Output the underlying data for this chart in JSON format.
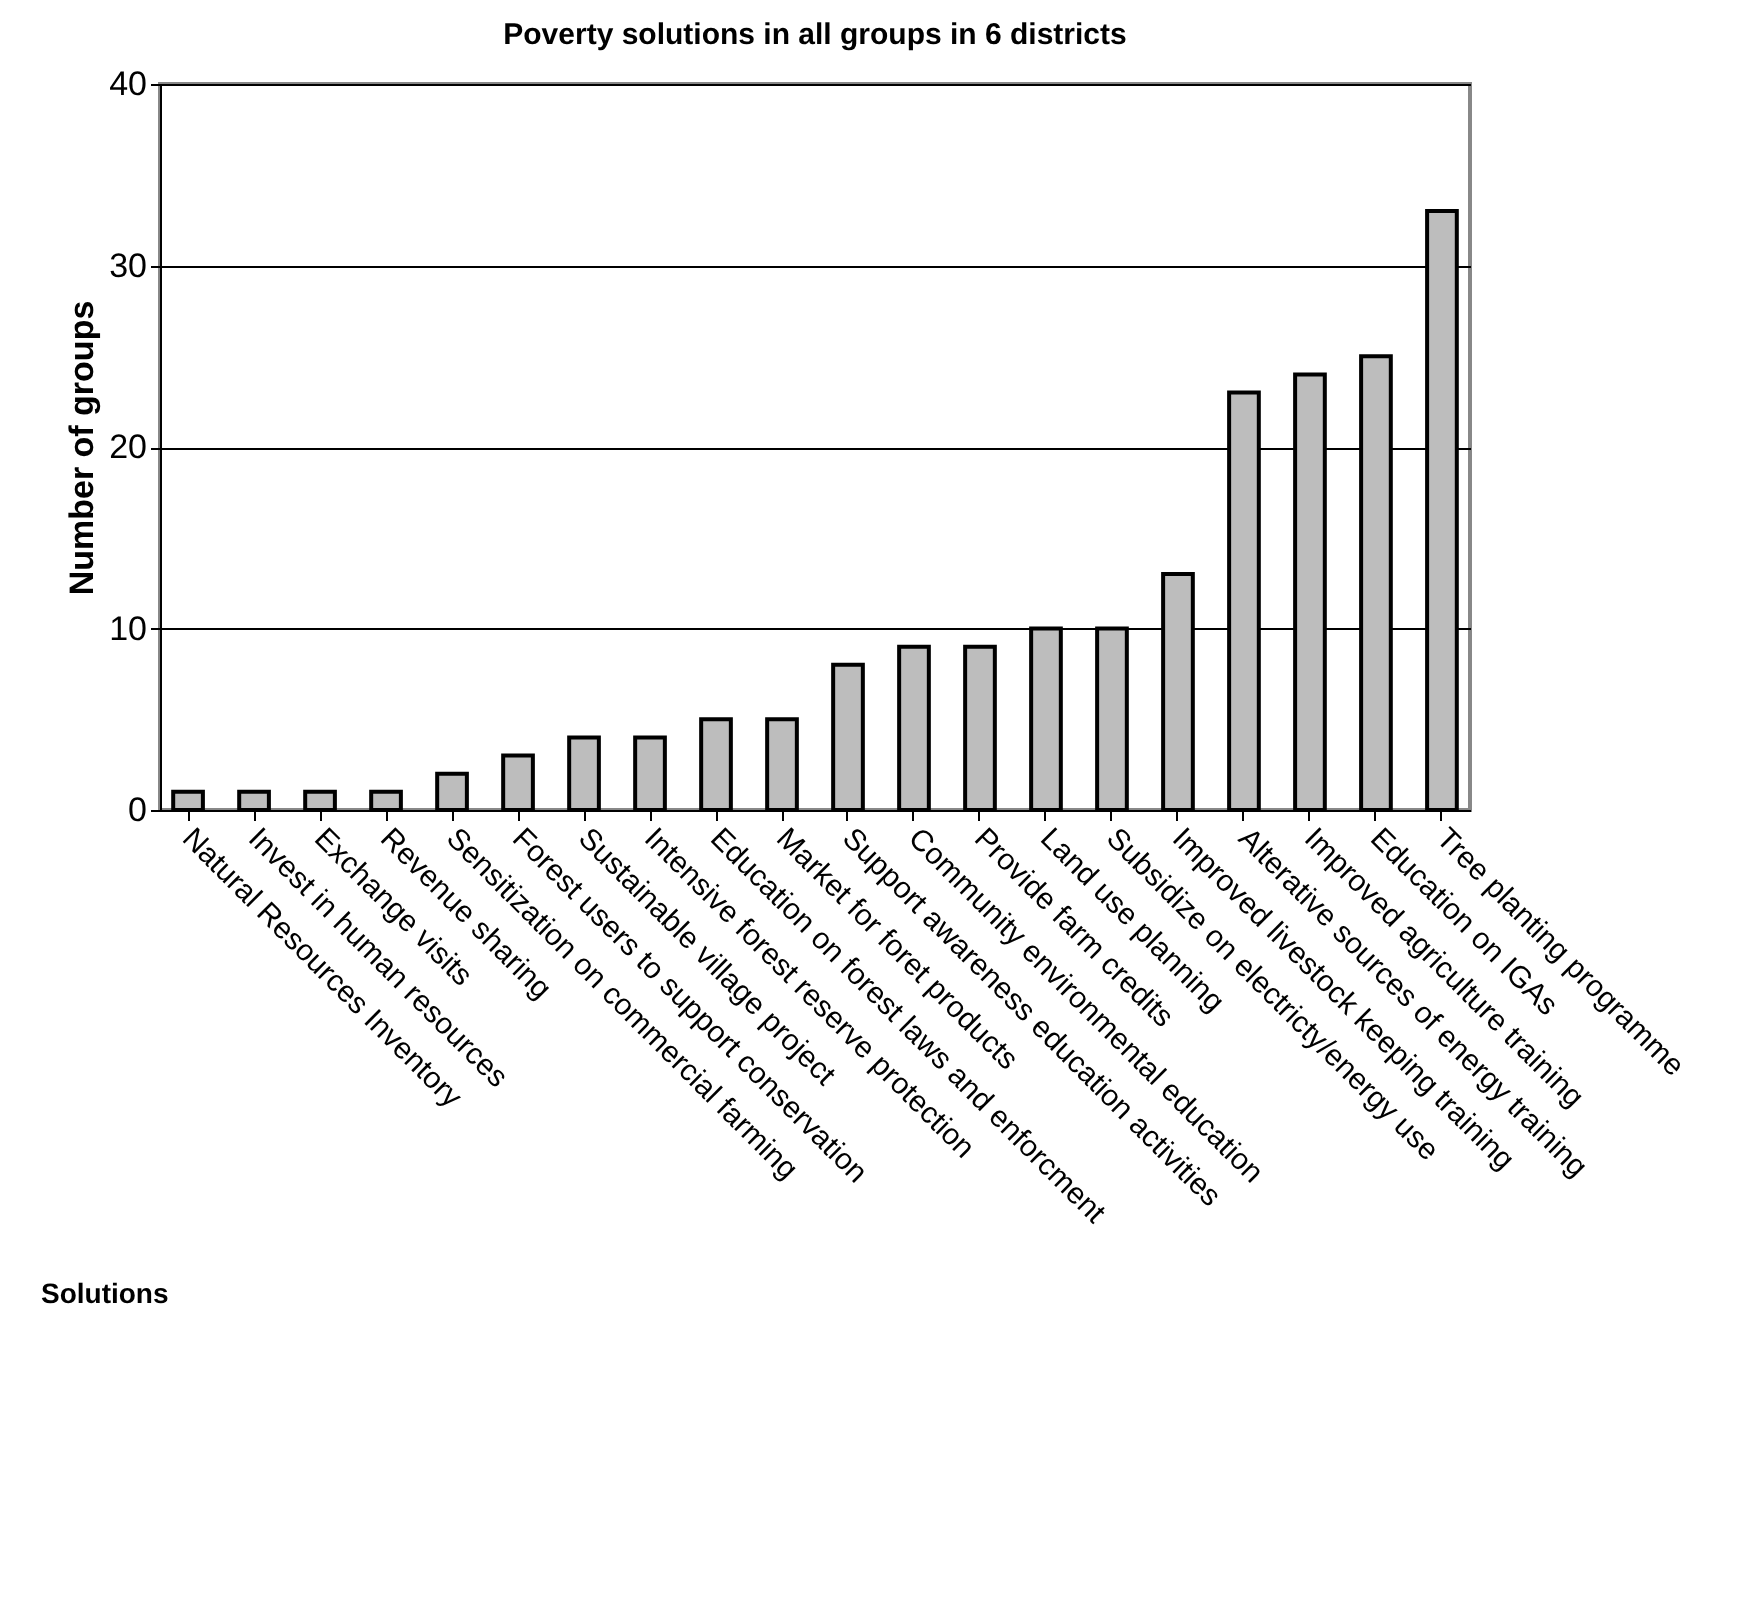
{
  "chart_data": {
    "type": "bar",
    "title": "Poverty solutions in all groups in 6 districts",
    "xlabel": "Solutions",
    "ylabel": "Number of groups",
    "categories": [
      "Natural Resources Inventory",
      "Invest in human resources",
      "Exchange visits",
      "Revenue sharing",
      "Sensitization on commercial farming",
      "Forest users to support conservation",
      "Sustainable village project",
      "Intensive forest reserve protection",
      "Education on forest laws and enforcment",
      "Market for foret products",
      "Support awareness education activities",
      "Community environmental education",
      "Provide farm credits",
      "Land use planning",
      "Subsidize on electricty/energy use",
      "Improved livestock keeping training",
      "Alterative sources of energy training",
      "Improved agriculture training",
      "Education on IGAs",
      "Tree planting programme"
    ],
    "values": [
      1,
      1,
      1,
      1,
      2,
      3,
      4,
      4,
      5,
      5,
      8,
      9,
      9,
      10,
      10,
      13,
      23,
      24,
      25,
      33
    ],
    "color": "#bdbdbd",
    "ylim": [
      0,
      40
    ],
    "yticks": [
      0,
      10,
      20,
      30,
      40
    ],
    "grid": "y"
  }
}
